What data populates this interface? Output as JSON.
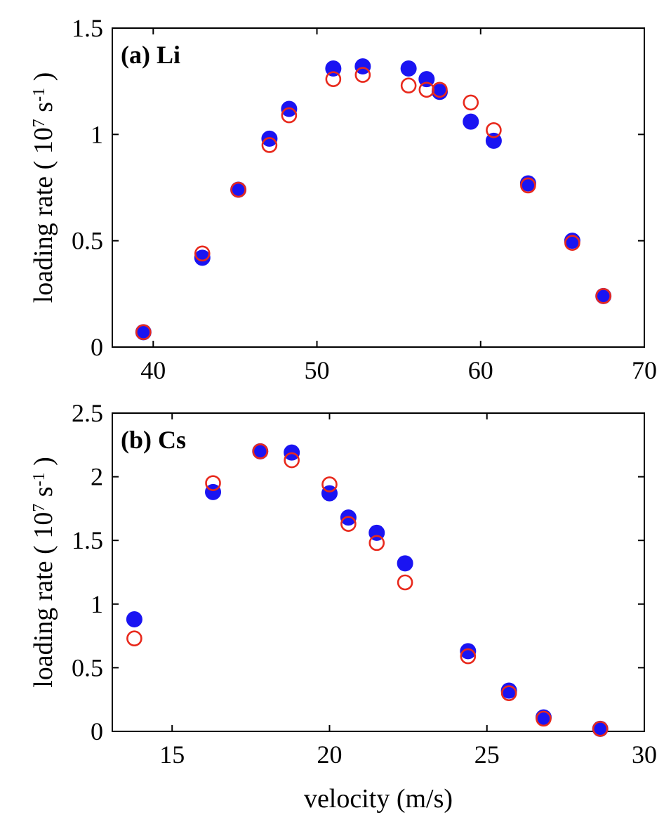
{
  "chart_data": [
    {
      "type": "scatter",
      "panel_label": "(a) Li",
      "xlabel": "",
      "ylabel": {
        "pre": "loading rate ( 10",
        "exp1": "7",
        "mid": " s",
        "exp2": "-1",
        "post": " )"
      },
      "xlim": [
        37.5,
        70
      ],
      "ylim": [
        0,
        1.5
      ],
      "xticks": [
        40,
        50,
        60,
        70
      ],
      "xtick_labels": [
        "40",
        "50",
        "60",
        "70"
      ],
      "yticks": [
        0,
        0.5,
        1,
        1.5
      ],
      "ytick_labels": [
        "0",
        "0.5",
        "1",
        "1.5"
      ],
      "colors": {
        "filled": "#1a14f2",
        "open": "#e8291c"
      },
      "series": [
        {
          "name": "filled",
          "marker": "filled-circle",
          "x": [
            39.4,
            43.0,
            45.2,
            47.1,
            48.3,
            51.0,
            52.8,
            55.6,
            56.7,
            57.5,
            59.4,
            60.8,
            62.9,
            65.6,
            67.5
          ],
          "y": [
            0.07,
            0.42,
            0.74,
            0.98,
            1.12,
            1.31,
            1.32,
            1.31,
            1.26,
            1.2,
            1.06,
            0.97,
            0.77,
            0.5,
            0.24
          ]
        },
        {
          "name": "open",
          "marker": "open-circle",
          "x": [
            39.4,
            43.0,
            45.2,
            47.1,
            48.3,
            51.0,
            52.8,
            55.6,
            56.7,
            57.5,
            59.4,
            60.8,
            62.9,
            65.6,
            67.5
          ],
          "y": [
            0.07,
            0.44,
            0.74,
            0.95,
            1.09,
            1.26,
            1.28,
            1.23,
            1.21,
            1.21,
            1.15,
            1.02,
            0.76,
            0.49,
            0.24
          ]
        }
      ]
    },
    {
      "type": "scatter",
      "panel_label": "(b) Cs",
      "xlabel": "velocity (m/s)",
      "ylabel": {
        "pre": "loading rate ( 10",
        "exp1": "7",
        "mid": " s",
        "exp2": "-1",
        "post": " )"
      },
      "xlim": [
        13.1,
        30
      ],
      "ylim": [
        0,
        2.5
      ],
      "xticks": [
        15,
        20,
        25,
        30
      ],
      "xtick_labels": [
        "15",
        "20",
        "25",
        "30"
      ],
      "yticks": [
        0,
        0.5,
        1,
        1.5,
        2,
        2.5
      ],
      "ytick_labels": [
        "0",
        "0.5",
        "1",
        "1.5",
        "2",
        "2.5"
      ],
      "colors": {
        "filled": "#1a14f2",
        "open": "#e8291c"
      },
      "series": [
        {
          "name": "filled",
          "marker": "filled-circle",
          "x": [
            13.8,
            16.3,
            17.8,
            18.8,
            20.0,
            20.6,
            21.5,
            22.4,
            24.4,
            25.7,
            26.8,
            28.6
          ],
          "y": [
            0.88,
            1.88,
            2.2,
            2.19,
            1.87,
            1.68,
            1.56,
            1.32,
            0.63,
            0.32,
            0.11,
            0.02
          ]
        },
        {
          "name": "open",
          "marker": "open-circle",
          "x": [
            13.8,
            16.3,
            17.8,
            18.8,
            20.0,
            20.6,
            21.5,
            22.4,
            24.4,
            25.7,
            26.8,
            28.6
          ],
          "y": [
            0.73,
            1.95,
            2.2,
            2.13,
            1.94,
            1.63,
            1.48,
            1.17,
            0.59,
            0.3,
            0.1,
            0.02
          ]
        }
      ]
    }
  ]
}
